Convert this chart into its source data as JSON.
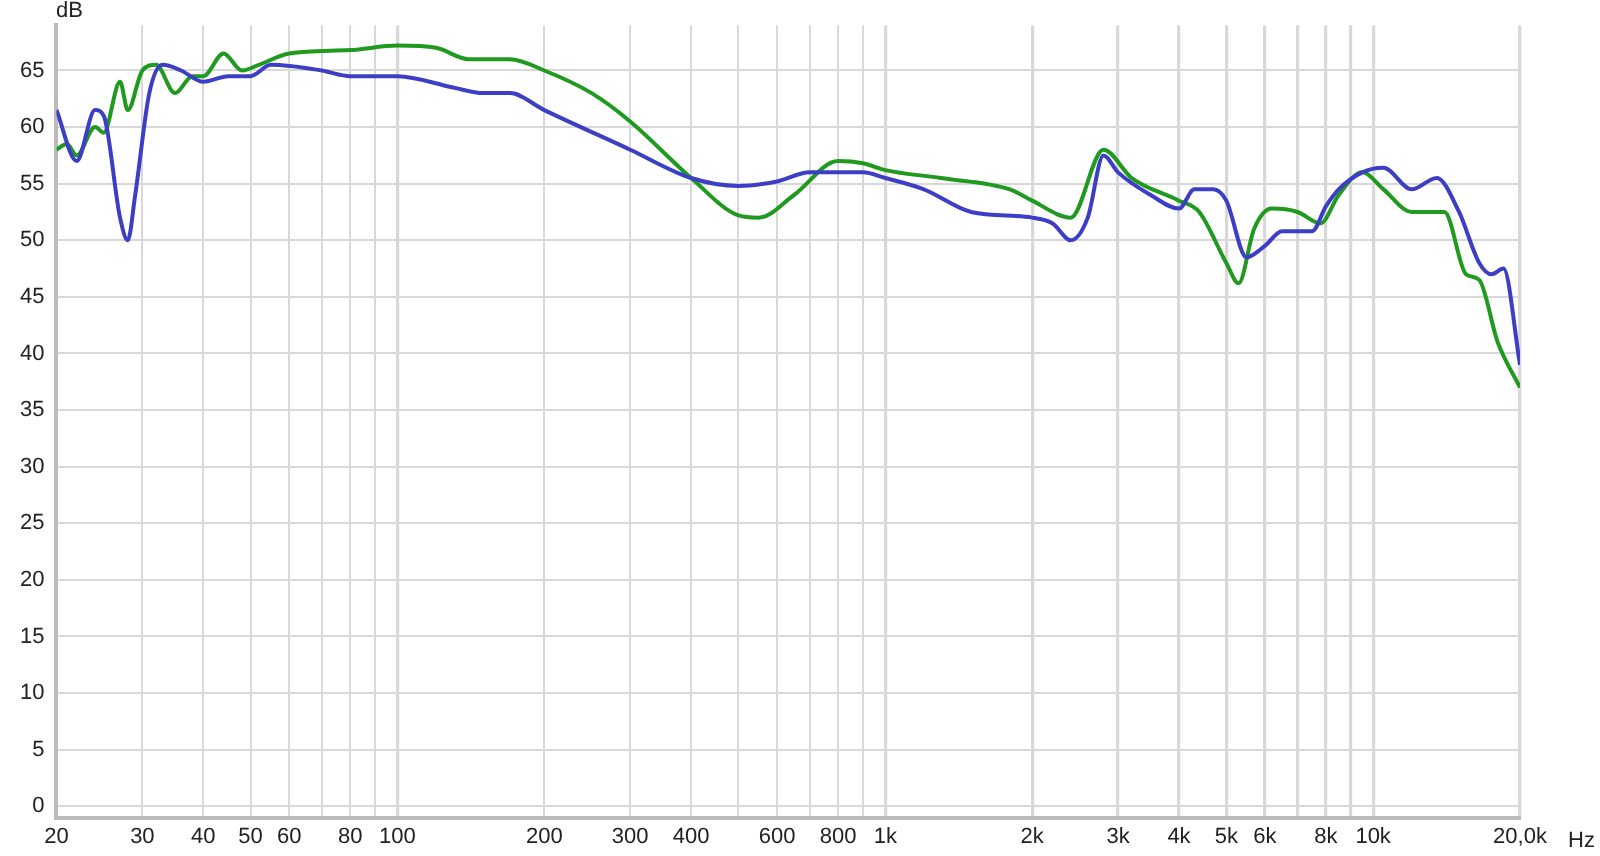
{
  "chart_data": {
    "type": "line",
    "xlabel": "Hz",
    "ylabel": "dB",
    "log": "x",
    "grid": true,
    "legend": false,
    "marker": "none",
    "line_style": "solid",
    "xlim": [
      20,
      20000
    ],
    "ylim": [
      -1,
      69
    ],
    "xticks": [
      20,
      30,
      40,
      50,
      60,
      {
        "value": 70,
        "label": null
      },
      80,
      {
        "value": 90,
        "label": null
      },
      100,
      200,
      300,
      400,
      {
        "value": 500,
        "label": null
      },
      600,
      {
        "value": 700,
        "label": null
      },
      800,
      {
        "value": 900,
        "label": null
      },
      {
        "value": 1000,
        "label": "1k"
      },
      {
        "value": 2000,
        "label": "2k"
      },
      {
        "value": 3000,
        "label": "3k"
      },
      {
        "value": 4000,
        "label": "4k"
      },
      {
        "value": 5000,
        "label": "5k"
      },
      {
        "value": 6000,
        "label": "6k"
      },
      {
        "value": 7000,
        "label": null
      },
      {
        "value": 8000,
        "label": "8k"
      },
      {
        "value": 9000,
        "label": null
      },
      {
        "value": 10000,
        "label": "10k"
      },
      {
        "value": 20000,
        "label": "20,0k"
      }
    ],
    "yticks": [
      0,
      5,
      10,
      15,
      20,
      25,
      30,
      35,
      40,
      45,
      50,
      55,
      60,
      65
    ],
    "series": [
      {
        "color": "#3c3fc6",
        "x": [
          20,
          22,
          24,
          25,
          27,
          28,
          29,
          31,
          33,
          36,
          40,
          45,
          50,
          55,
          70,
          80,
          100,
          130,
          150,
          170,
          200,
          300,
          400,
          500,
          600,
          700,
          900,
          1000,
          1200,
          1500,
          2000,
          2200,
          2400,
          2600,
          2800,
          3000,
          3500,
          4000,
          4300,
          4700,
          5000,
          5500,
          6000,
          6500,
          7500,
          8000,
          8500,
          9500,
          10500,
          12000,
          13500,
          15000,
          16500,
          17500,
          18500,
          20000
        ],
        "values": [
          61.5,
          57,
          61.5,
          61,
          52,
          50,
          54,
          63,
          65.5,
          65,
          64,
          64.5,
          64.5,
          65.5,
          65,
          64.5,
          64.5,
          63.5,
          63,
          63,
          61.5,
          58,
          55.5,
          54.8,
          55.2,
          56,
          56,
          55.5,
          54.5,
          52.5,
          52,
          51.5,
          50,
          52,
          57.5,
          56,
          54,
          52.8,
          54.5,
          54.5,
          53.5,
          48.5,
          49.5,
          50.8,
          50.8,
          53,
          54.5,
          56,
          56.4,
          54.5,
          55.5,
          52.5,
          48,
          47,
          47.5,
          39
        ]
      },
      {
        "color": "#1f9a1f",
        "x": [
          20,
          21,
          22,
          24,
          25,
          27,
          28,
          30,
          32,
          35,
          38,
          40,
          44,
          48,
          52,
          60,
          80,
          100,
          120,
          140,
          170,
          200,
          250,
          300,
          400,
          500,
          550,
          650,
          800,
          900,
          1000,
          1300,
          1800,
          2000,
          2400,
          2800,
          3200,
          4000,
          4400,
          5000,
          5300,
          5700,
          6200,
          7000,
          7800,
          8500,
          9500,
          10500,
          12000,
          14000,
          15500,
          16500,
          18000,
          20000
        ],
        "values": [
          58,
          58.5,
          57.5,
          60,
          59.5,
          64,
          61.5,
          65,
          65.5,
          63,
          64.5,
          64.5,
          66.5,
          65,
          65.5,
          66.5,
          66.8,
          67.2,
          67,
          66,
          66,
          65,
          63,
          60.5,
          55.5,
          52.2,
          52,
          54,
          57,
          56.8,
          56.2,
          55.5,
          54.5,
          53.5,
          52,
          58,
          55.5,
          53.5,
          52.5,
          48,
          46.2,
          51,
          52.8,
          52.5,
          51.5,
          54,
          56,
          54.5,
          52.5,
          52.5,
          47,
          46.5,
          41,
          37
        ]
      }
    ]
  }
}
